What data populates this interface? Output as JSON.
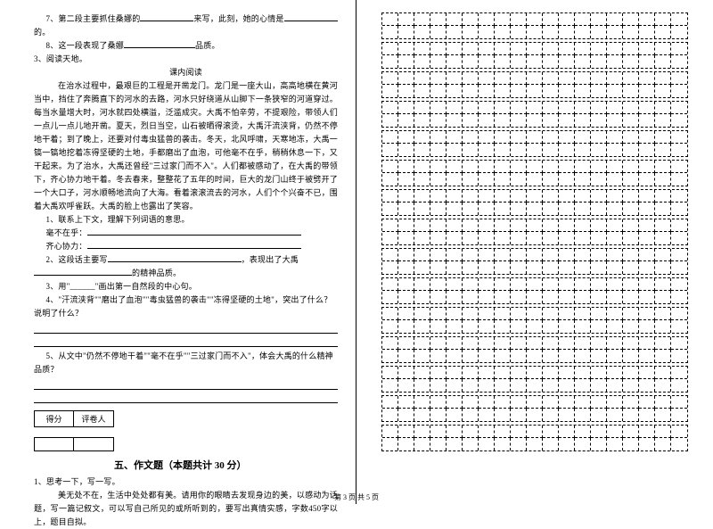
{
  "q7": {
    "prefix": "7、第二段主要抓住桑娜的",
    "mid": "来写，此刻，她的心情是",
    "suffix": "的。"
  },
  "q8": {
    "prefix": "8、这一段表现了桑娜",
    "suffix": "品质。"
  },
  "q3": "3、阅读天地。",
  "passage": {
    "title": "课内阅读",
    "p1": "在治水过程中，最艰巨的工程是开凿龙门。龙门是一座大山，高高地横在黄河当中，挡住了奔腾直下的河水的去路，河水只好绕道从山脚下一条狭窄的河道穿过。每当水量增大时，河水就四处横溢，泛滥成灾。大禹不怕辛劳，不提艰险，带领人们一点儿一点儿地开凿。夏天，烈日当空，山石被晒得滚烫，大禹汗流浃背，仍然不停地干着；到了晚上，还要对付毒虫猛兽的袭击。冬天，北风呼啸，天寒地冻，大禹一镐一镐地挖着冻得坚硬的土地，手都磨出了血泡，可他毫不在乎，稍稍休息一下，又干起来。为了治水，大禹还曾经\"三过家门而不入\"。人们都被感动了，在大禹的带领下，齐心协力地干着。冬去春来，整整花了五年的时间，巨大的龙门山终于被劈开了一个大口子，河水顺畅地流向了大海。看着滚滚流去的河水，人们个个兴奋不已，围着大禹欢呼雀跃。大禹的脸上也露出了笑容。"
  },
  "sub": {
    "s1": "1、联系上下文，理解下列词语的意思。",
    "s1a": "毫不在乎：",
    "s1b": "齐心协力：",
    "s2a": "2、这段话主要写",
    "s2b": "，表现出了大禹",
    "s2c": "的精神品质。",
    "s3": "3、用\"______\"画出第一自然段的中心句。",
    "s4": "4、\"汗流浃背\"\"磨出了血泡\"\"毒虫猛兽的袭击\"\"冻得坚硬的土地\"，突出了什么？说明了什么？",
    "s5": "5、从文中\"仍然不停地干着\"\"毫不在乎\"\"三过家门而不入\"，体会大禹的什么精神品质？"
  },
  "section5": {
    "header_score": "得分",
    "header_judge": "评卷人",
    "title": "五、作文题（本题共计 30 分）",
    "q1": "1、思考一下，写一写。",
    "prompt": "美无处不在，生活中处处都有美。请用你的眼睛去发现身边的美，以感动为话题，写一篇记叙文，可以写自己所见的或所听到的，要写出真情实感，字数450字以上，题目自拟。"
  },
  "footer": "第 3 页 共 5 页",
  "grid": {
    "rows": 15
  },
  "style": {
    "blank_short": 60,
    "blank_med": 80,
    "blank_long": 120
  }
}
